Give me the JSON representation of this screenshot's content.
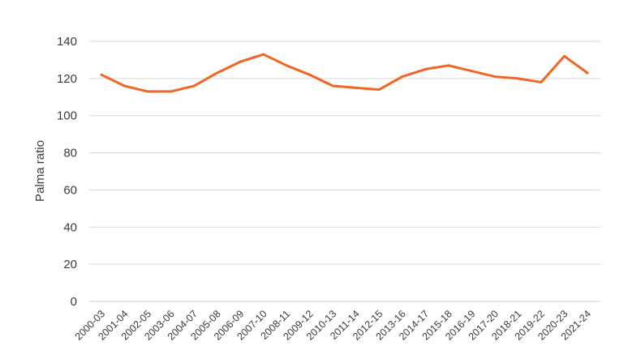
{
  "chart_data": {
    "type": "line",
    "title": "",
    "xlabel": "",
    "ylabel": "Palma ratio",
    "ylim": [
      0,
      140
    ],
    "yticks": [
      0,
      20,
      40,
      60,
      80,
      100,
      120,
      140
    ],
    "grid": "horizontal",
    "legend": "none",
    "categories": [
      "2000-03",
      "2001-04",
      "2002-05",
      "2003-06",
      "2004-07",
      "2005-08",
      "2006-09",
      "2007-10",
      "2008-11",
      "2009-12",
      "2010-13",
      "2011-14",
      "2012-15",
      "2013-16",
      "2014-17",
      "2015-18",
      "2016-19",
      "2017-20",
      "2018-21",
      "2019-22",
      "2020-23",
      "2021-24"
    ],
    "series": [
      {
        "color": "#f26522",
        "values": [
          122,
          116,
          113,
          113,
          116,
          123,
          129,
          133,
          127,
          122,
          116,
          115,
          114,
          121,
          125,
          127,
          124,
          121,
          120,
          118,
          132,
          123
        ]
      }
    ]
  },
  "colors": {
    "line": "#f26522",
    "grid": "#d9d9d9",
    "text": "#3a3a3a"
  }
}
